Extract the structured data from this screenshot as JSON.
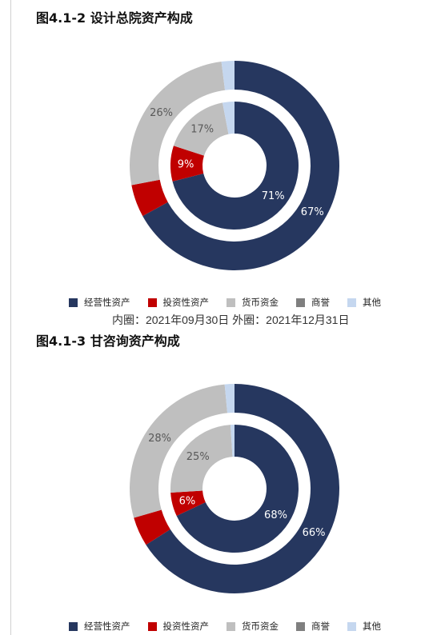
{
  "colors": {
    "operating": "#26375f",
    "investment": "#c00000",
    "cash": "#bfbfbf",
    "goodwill": "#7f7f7f",
    "other": "#c5d7ef",
    "label_dark_bg": "#ffffff",
    "label_light_bg": "#595959"
  },
  "legend": [
    {
      "name": "经营性资产",
      "color": "#26375f"
    },
    {
      "name": "投资性资产",
      "color": "#c00000"
    },
    {
      "name": "货币资金",
      "color": "#bfbfbf"
    },
    {
      "name": "商誉",
      "color": "#7f7f7f"
    },
    {
      "name": "其他",
      "color": "#c5d7ef"
    }
  ],
  "caption": "内圈：2021年09月30日 外圈：2021年12月31日",
  "chart_data": [
    {
      "type": "pie",
      "title": "图4.1-2 设计总院资产构成",
      "categories": [
        "经营性资产",
        "投资性资产",
        "货币资金",
        "商誉",
        "其他"
      ],
      "series": [
        {
          "ring": "inner",
          "values": [
            71,
            9,
            17,
            0,
            3
          ],
          "labels": [
            "71%",
            "9%",
            "17%",
            "",
            ""
          ]
        },
        {
          "ring": "outer",
          "values": [
            67,
            5,
            26,
            0,
            2
          ],
          "labels": [
            "67%",
            "",
            "26%",
            "",
            ""
          ]
        }
      ]
    },
    {
      "type": "pie",
      "title": "图4.1-3 甘咨询资产构成",
      "categories": [
        "经营性资产",
        "投资性资产",
        "货币资金",
        "商誉",
        "其他"
      ],
      "series": [
        {
          "ring": "inner",
          "values": [
            68,
            6,
            25,
            0,
            1
          ],
          "labels": [
            "68%",
            "6%",
            "25%",
            "",
            ""
          ]
        },
        {
          "ring": "outer",
          "values": [
            66,
            4.5,
            28,
            0,
            1.5
          ],
          "labels": [
            "66%",
            "",
            "28%",
            "",
            ""
          ]
        }
      ]
    }
  ]
}
